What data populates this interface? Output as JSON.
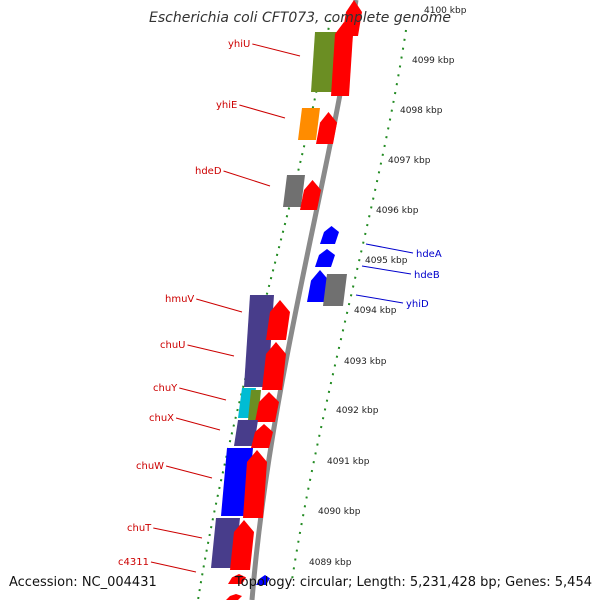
{
  "title": "Escherichia coli CFT073, complete genome",
  "accession": "Accession: NC_004431",
  "topology": "Topology: circular; Length: 5,231,428 bp; Genes: 5,454",
  "ticks": [
    {
      "label": "4100 kbp"
    },
    {
      "label": "4099 kbp"
    },
    {
      "label": "4098 kbp"
    },
    {
      "label": "4097 kbp"
    },
    {
      "label": "4096 kbp"
    },
    {
      "label": "4095 kbp"
    },
    {
      "label": "4094 kbp"
    },
    {
      "label": "4093 kbp"
    },
    {
      "label": "4092 kbp"
    },
    {
      "label": "4091 kbp"
    },
    {
      "label": "4090 kbp"
    },
    {
      "label": "4089 kbp"
    }
  ],
  "gene_labels_forward": [
    "yhiU",
    "yhiE",
    "hdeD",
    "hmuV",
    "chuU",
    "chuY",
    "chuX",
    "chuW",
    "chuT",
    "c4311"
  ],
  "gene_labels_reverse": [
    "hdeA",
    "hdeB",
    "yhiD"
  ],
  "colors": {
    "forward_label": "#cc0000",
    "reverse_label": "#0000cc",
    "cds_red": "#ff0000",
    "cds_blue": "#0000ff",
    "olive": "#6b8e23",
    "orange": "#ff8c00",
    "gray": "#707070",
    "slate": "#483d8b",
    "cyan": "#00bcd4",
    "backbone": "#8a8a8a",
    "tick": "#228b22"
  }
}
